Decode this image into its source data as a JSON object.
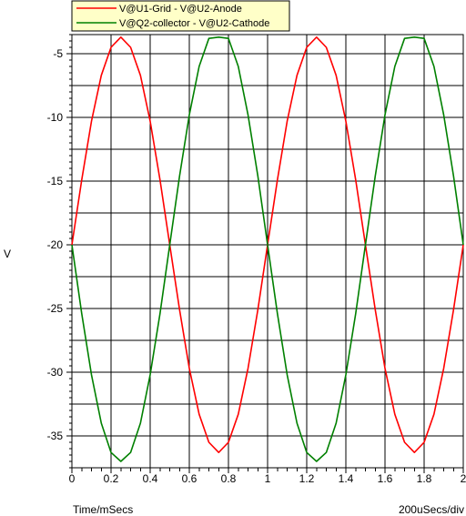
{
  "chart_data": {
    "type": "line",
    "xlabel": "Time/mSecs",
    "ylabel": "V",
    "x_division_label": "200uSecs/div",
    "xlim": [
      0,
      2
    ],
    "ylim": [
      -37.5,
      -3.5
    ],
    "xticks": [
      0,
      0.2,
      0.4,
      0.6,
      0.8,
      1,
      1.2,
      1.4,
      1.6,
      1.8,
      2
    ],
    "yticks": [
      -5,
      -10,
      -15,
      -20,
      -25,
      -30,
      -35
    ],
    "grid": true,
    "legend_position": "top-left",
    "series": [
      {
        "name": "V@U1-Grid - V@U2-Anode",
        "color": "#ff0000",
        "x": [
          0,
          0.05,
          0.1,
          0.15,
          0.2,
          0.25,
          0.3,
          0.35,
          0.4,
          0.45,
          0.5,
          0.55,
          0.6,
          0.65,
          0.7,
          0.75,
          0.8,
          0.85,
          0.9,
          0.95,
          1.0,
          1.05,
          1.1,
          1.15,
          1.2,
          1.25,
          1.3,
          1.35,
          1.4,
          1.45,
          1.5,
          1.55,
          1.6,
          1.65,
          1.7,
          1.75,
          1.8,
          1.85,
          1.9,
          1.95,
          2.0
        ],
        "values": [
          -20,
          -14.9,
          -10.3,
          -6.7,
          -4.5,
          -3.7,
          -4.5,
          -6.7,
          -10.3,
          -14.9,
          -20,
          -25.1,
          -29.7,
          -33.3,
          -35.5,
          -36.3,
          -35.5,
          -33.3,
          -29.7,
          -25.1,
          -20,
          -14.9,
          -10.3,
          -6.7,
          -4.5,
          -3.7,
          -4.5,
          -6.7,
          -10.3,
          -14.9,
          -20,
          -25.1,
          -29.7,
          -33.3,
          -35.5,
          -36.3,
          -35.5,
          -33.3,
          -29.7,
          -25.1,
          -20
        ]
      },
      {
        "name": "V@Q2-collector - V@U2-Cathode",
        "color": "#008000",
        "x": [
          0,
          0.05,
          0.1,
          0.15,
          0.2,
          0.25,
          0.3,
          0.35,
          0.4,
          0.45,
          0.5,
          0.55,
          0.6,
          0.65,
          0.7,
          0.75,
          0.8,
          0.85,
          0.9,
          0.95,
          1.0,
          1.05,
          1.1,
          1.15,
          1.2,
          1.25,
          1.3,
          1.35,
          1.4,
          1.45,
          1.5,
          1.55,
          1.6,
          1.65,
          1.7,
          1.75,
          1.8,
          1.85,
          1.9,
          1.95,
          2.0
        ],
        "values": [
          -20,
          -25.4,
          -30.2,
          -34.0,
          -36.3,
          -37.0,
          -36.3,
          -34.0,
          -30.2,
          -25.4,
          -20,
          -14.6,
          -9.8,
          -6.0,
          -3.8,
          -3.7,
          -3.8,
          -6.0,
          -9.8,
          -14.6,
          -20,
          -25.4,
          -30.2,
          -34.0,
          -36.3,
          -37.0,
          -36.3,
          -34.0,
          -30.2,
          -25.4,
          -20,
          -14.6,
          -9.8,
          -6.0,
          -3.8,
          -3.7,
          -3.8,
          -6.0,
          -9.8,
          -14.6,
          -20
        ]
      }
    ]
  }
}
